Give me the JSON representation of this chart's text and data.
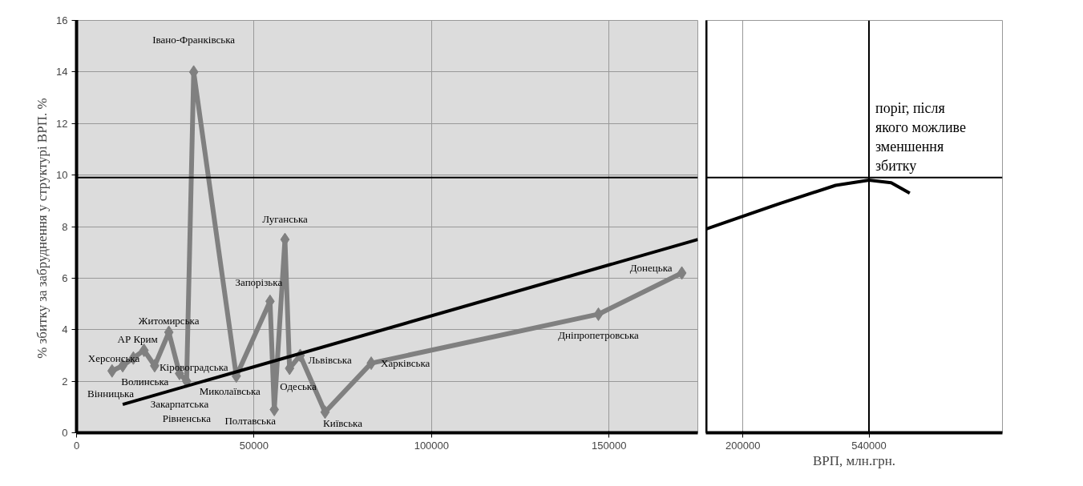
{
  "chart_data": [
    {
      "type": "line",
      "ylabel": "% збитку  за забруднення у структурі ВРП. %",
      "xlim": [
        0,
        175000
      ],
      "ylim": [
        0,
        16
      ],
      "xticks": [
        0,
        50000,
        100000,
        150000
      ],
      "yticks": [
        0,
        2,
        4,
        6,
        8,
        10,
        12,
        14,
        16
      ],
      "grid": true,
      "marker": "diamond",
      "series": [
        {
          "color": "#808080",
          "x": [
            10000,
            13000,
            16000,
            19000,
            22000,
            26000,
            29000,
            31000,
            33000,
            45000,
            54500,
            55700,
            58700,
            60000,
            63000,
            70000,
            83000,
            147000,
            170500
          ],
          "values": [
            2.4,
            2.6,
            2.9,
            3.2,
            2.6,
            3.9,
            2.3,
            2.0,
            14.0,
            2.2,
            5.1,
            0.9,
            7.5,
            2.5,
            3.0,
            0.8,
            2.7,
            4.6,
            6.2
          ]
        },
        {
          "type": "line",
          "marker": "none",
          "color": "#000000",
          "x": [
            13000,
            175000
          ],
          "values": [
            1.1,
            7.5
          ]
        }
      ],
      "ref_lines": [
        {
          "axis": "y",
          "value": 9.9,
          "color": "#000000"
        }
      ],
      "annotations": [
        {
          "text": "Херсонська",
          "x": 10000,
          "y": 2.4
        },
        {
          "text": "Вінницька",
          "x": 13000,
          "y": 2.6
        },
        {
          "text": "Волинська",
          "x": 16000,
          "y": 2.9
        },
        {
          "text": "АР Крим",
          "x": 19000,
          "y": 3.2
        },
        {
          "text": "Кіровоградська",
          "x": 22000,
          "y": 2.6
        },
        {
          "text": "Житомирська",
          "x": 26000,
          "y": 3.9
        },
        {
          "text": "Закарпатська",
          "x": 29000,
          "y": 2.3
        },
        {
          "text": "Рівненська",
          "x": 31000,
          "y": 2.0
        },
        {
          "text": "Івано-Франківська",
          "x": 33000,
          "y": 14.0
        },
        {
          "text": "Миколаївська",
          "x": 45000,
          "y": 2.2
        },
        {
          "text": "Запорізька",
          "x": 54500,
          "y": 5.1
        },
        {
          "text": "Полтавська",
          "x": 55700,
          "y": 0.9
        },
        {
          "text": "Луганська",
          "x": 58700,
          "y": 7.5
        },
        {
          "text": "Одеська",
          "x": 60000,
          "y": 2.5
        },
        {
          "text": "Львівська",
          "x": 63000,
          "y": 3.0
        },
        {
          "text": "Київська",
          "x": 70000,
          "y": 0.8
        },
        {
          "text": "Харківська",
          "x": 83000,
          "y": 2.7
        },
        {
          "text": "Дніпропетровська",
          "x": 147000,
          "y": 4.6
        },
        {
          "text": "Донецька",
          "x": 170500,
          "y": 6.2
        }
      ]
    },
    {
      "type": "line",
      "xlabel": "ВРП, млн.грн.",
      "xlim": [
        100000,
        900000
      ],
      "ylim": [
        0,
        16
      ],
      "xticks": [
        200000,
        540000
      ],
      "tick_labels": "x",
      "grid": true,
      "marker": "none",
      "series": [
        {
          "color": "#000000",
          "x": [
            100000,
            300000,
            450000,
            540000,
            600000,
            650000
          ],
          "values": [
            7.9,
            8.9,
            9.6,
            9.8,
            9.7,
            9.3
          ]
        }
      ],
      "ref_lines": [
        {
          "axis": "y",
          "value": 9.9,
          "color": "#000000"
        },
        {
          "axis": "x",
          "value": 540000,
          "color": "#000000"
        }
      ],
      "annotations": [
        {
          "text": "поріг, після якого можливе зменшення збитку",
          "x": 540000,
          "y": 9.8
        }
      ]
    }
  ]
}
